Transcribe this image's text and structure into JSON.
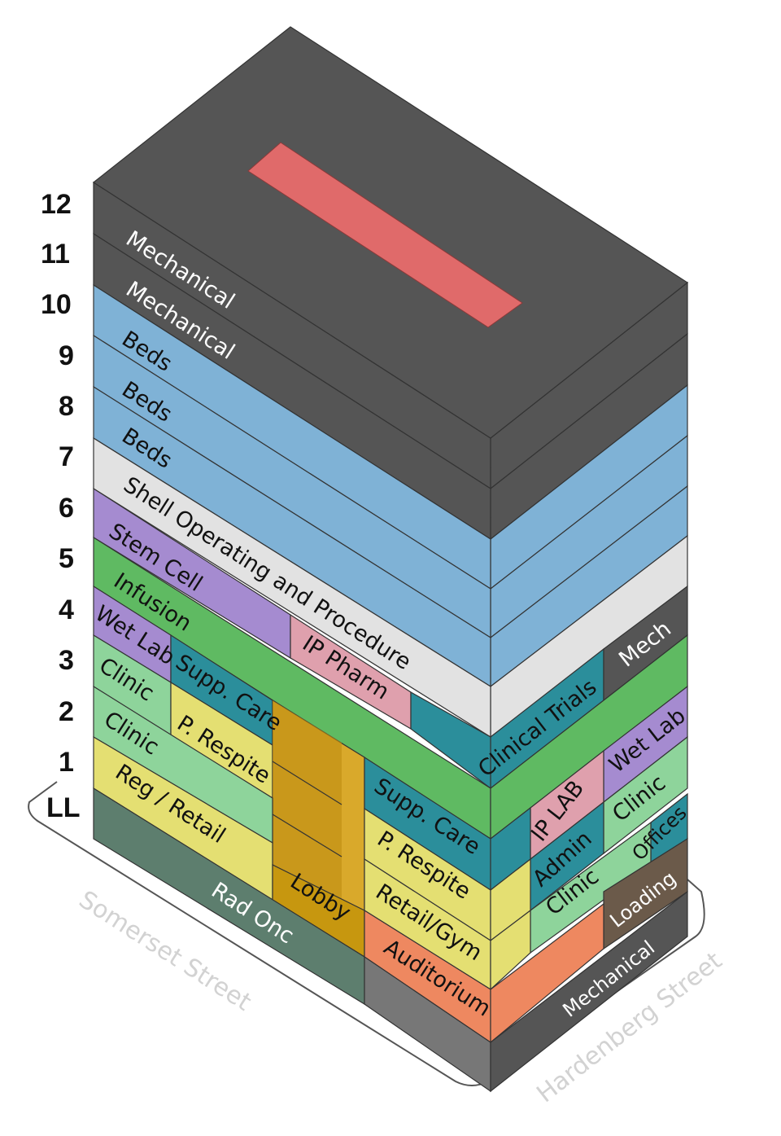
{
  "floor_numbers": [
    "12",
    "11",
    "10",
    "9",
    "8",
    "7",
    "6",
    "5",
    "4",
    "3",
    "2",
    "1",
    "LL"
  ],
  "streets": {
    "left": "Somerset Street",
    "right": "Hardenberg Street"
  },
  "colors": {
    "mechanical": "#555555",
    "beds": "#7fb2d6",
    "shell": "#e2e2e2",
    "stem_cell": "#a58bd0",
    "infusion": "#5fba62",
    "ip_pharm": "#dfa0ad",
    "clinical_trials": "#2b8e9b",
    "wet_lab": "#a58bd0",
    "clinic": "#8ed49b",
    "supp_care": "#2b8e9b",
    "respite": "#e4df72",
    "retail": "#e4df72",
    "rad_onc": "#5d7e6e",
    "lobby": "#c7970f",
    "auditorium": "#ee8860",
    "loading": "#6b5a4a",
    "admin": "#2b8e9b",
    "ip_lab": "#dfa0ad",
    "offices": "#2b8e9b",
    "roof_feature": "#e06a6a"
  },
  "labels": {
    "mech12": "Mechanical",
    "mech11": "Mechanical",
    "beds10": "Beds",
    "beds9": "Beds",
    "beds8": "Beds",
    "shell": "Shell Operating and Procedure",
    "stem_cell": "Stem Cell",
    "infusion": "Infusion",
    "ip_pharm": "IP Pharm",
    "wet_lab_front": "Wet Lab",
    "supp_care_front3": "Supp. Care",
    "clinic2": "Clinic",
    "respite2": "P. Respite",
    "clinic1": "Clinic",
    "reg_retail": "Reg / Retail",
    "rad_onc": "Rad Onc",
    "lobby": "Lobby",
    "supp_care_front2": "Supp. Care",
    "respite1": "P. Respite",
    "retail_gym": "Retail/Gym",
    "auditorium": "Auditorium",
    "mech_side": "Mech",
    "clinical_trials": "Clinical Trials",
    "wet_lab_side": "Wet Lab",
    "ip_lab": "IP LAB",
    "clinic_side2": "Clinic",
    "admin": "Admin",
    "offices": "Offices",
    "clinic_side1": "Clinic",
    "loading": "Loading",
    "mech_side_ll": "Mechanical"
  }
}
